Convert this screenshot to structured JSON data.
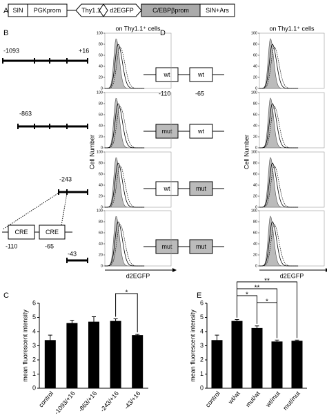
{
  "panel_labels": [
    "A",
    "B",
    "C",
    "D",
    "E"
  ],
  "construct": [
    "SIN",
    "PGKprom",
    "Thy1.1",
    "d2EGFP",
    "C/EBPβprom",
    "SIN+Ars"
  ],
  "panel_b": {
    "positions": [
      "-1093",
      "+16",
      "-863",
      "-243",
      "-43"
    ],
    "cre": [
      "CRE",
      "CRE"
    ],
    "cre_positions": [
      "-110",
      "-65"
    ]
  },
  "panel_d": {
    "constructs": [
      [
        "wt",
        "wt"
      ],
      [
        "mut",
        "wt"
      ],
      [
        "wt",
        "mut"
      ],
      [
        "mut",
        "mut"
      ]
    ],
    "positions": [
      "-110",
      "-65"
    ]
  },
  "histograms": {
    "title": "on Thy1.1⁺ cells",
    "ylabel": "Cell Number",
    "xlabel": "d2EGFP",
    "ylim": [
      0,
      100
    ],
    "yticks": [
      0,
      20,
      40,
      60,
      80,
      100
    ]
  },
  "chart_data": [
    {
      "type": "bar",
      "ylabel": "mean fluorescent intensity",
      "color": "#000000",
      "categories": [
        "control",
        "-1093/+16",
        "-863/+16",
        "-243/+16",
        "-43/+16"
      ],
      "values": [
        3.4,
        4.6,
        4.7,
        4.75,
        3.75
      ],
      "errors": [
        0.35,
        0.2,
        0.35,
        0.15,
        0.05
      ],
      "ylim": [
        0,
        6
      ],
      "yticks": [
        0,
        1,
        2,
        3,
        4,
        5,
        6
      ],
      "brackets": [
        {
          "label": "*",
          "categories": [
            "-243/+16",
            "-43/+16"
          ]
        }
      ]
    },
    {
      "type": "bar",
      "ylabel": "mean fluorescent intensity",
      "color": "#000000",
      "categories": [
        "control",
        "wt/wt",
        "mut/wt",
        "wt/mut",
        "mut/mut"
      ],
      "values": [
        3.4,
        4.75,
        4.25,
        3.3,
        3.35
      ],
      "errors": [
        0.35,
        0.1,
        0.15,
        0.1,
        0.05
      ],
      "ylim": [
        0,
        6
      ],
      "yticks": [
        0,
        1,
        2,
        3,
        4,
        5,
        6
      ],
      "brackets": [
        {
          "label": "**",
          "categories": [
            "wt/wt",
            "mut/mut"
          ]
        },
        {
          "label": "**",
          "categories": [
            "wt/wt",
            "wt/mut"
          ]
        },
        {
          "label": "*",
          "categories": [
            "wt/wt",
            "mut/wt"
          ]
        },
        {
          "label": "*",
          "categories": [
            "mut/wt",
            "wt/mut"
          ]
        }
      ]
    }
  ]
}
